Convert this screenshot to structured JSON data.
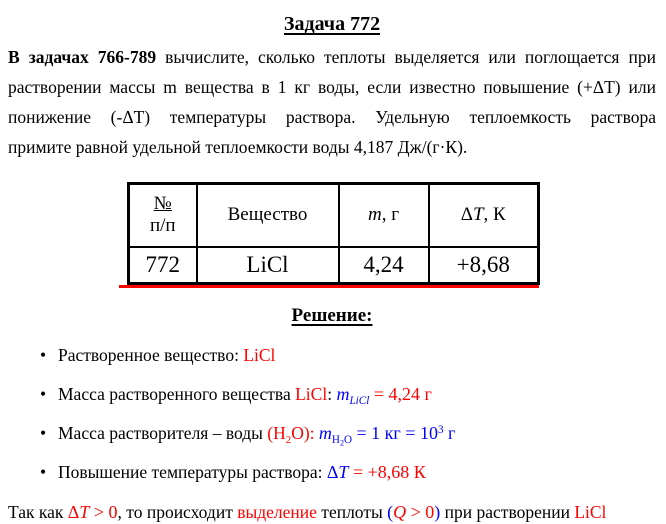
{
  "title": "Задача 772",
  "intro": {
    "lines": [
      {
        "bold": "В задачах 766-789",
        "rest": " вычислите, сколько теплоты выделяется или поглощается при"
      },
      {
        "rest": "растворении массы m вещества в 1 кг воды, если известно повышение (+ΔT) или"
      },
      {
        "rest": "понижение (-ΔT) температуры раствора. Удельную теплоемкость раствора"
      },
      {
        "rest": "примите равной удельной теплоемкости воды 4,187 Дж/(г·К)."
      }
    ]
  },
  "table": {
    "headers": {
      "col1_line1": "№",
      "col1_line2": "п/п",
      "col2": "Вещество",
      "col3_var": "m",
      "col3_unit": ", г",
      "col4_delta_sym": "Δ",
      "col4_delta_var": "T",
      "col4_unit": ", К"
    },
    "row": {
      "number": "772",
      "substance": "LiCl",
      "mass": "4,24",
      "delta_t": "+8,68"
    }
  },
  "solution_heading": "Решение:",
  "bullets": {
    "b1": {
      "label": "Растворенное вещество: ",
      "value": "LiCl"
    },
    "b2": {
      "label": "Масса растворенного вещества ",
      "substance": "LiCl",
      "colon": ":  ",
      "var": "m",
      "var_sub": "LiCl",
      "eq": " = 4,24 г"
    },
    "b3": {
      "label": "Масса растворителя – воды ",
      "par_pre": "(H",
      "par_sub": "2",
      "par_post": "O):  ",
      "var": "m",
      "sub_h": "H",
      "sub_2": "2",
      "sub_o": "O",
      "eq_pre": " = 1 кг = 10",
      "eq_sup": "3",
      "eq_post": " г"
    },
    "b4": {
      "label": "Повышение температуры раствора:  ",
      "delta_sym": "Δ",
      "delta_var": "T",
      "eq": " = +8,68 К"
    }
  },
  "footer": {
    "t1": "Так как  ",
    "d_sym": "Δ",
    "d_var": "T",
    "f1": " > 0",
    "t2": ", то происходит ",
    "hl": "выделение",
    "t3": " теплоты ",
    "p_open": "(",
    "q_var": "Q",
    "f2": " > 0",
    "p_close": ")",
    "t4": " при растворении ",
    "sub2": "LiCl"
  },
  "colors": {
    "accent_red": "#ff0000",
    "formula_blue": "#0000ff",
    "text_black": "#000000",
    "table_underline_red": "#ff0000"
  }
}
